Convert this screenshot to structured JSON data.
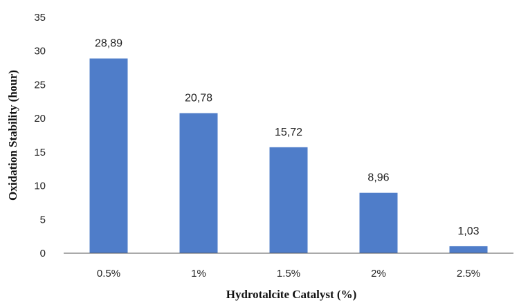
{
  "chart_data": {
    "type": "bar",
    "categories": [
      "0.5%",
      "1%",
      "1.5%",
      "2%",
      "2.5%"
    ],
    "values": [
      28.89,
      20.78,
      15.72,
      8.96,
      1.03
    ],
    "data_labels": [
      "28,89",
      "20,78",
      "15,72",
      "8,96",
      "1,03"
    ],
    "xlabel": "Hydrotalcite Catalyst (%)",
    "ylabel": "Oxidation Stability (hour)",
    "ylim": [
      0,
      35
    ],
    "yticks": [
      0,
      5,
      10,
      15,
      20,
      25,
      30,
      35
    ],
    "grid": false,
    "bar_color": "#4f7dc9"
  }
}
